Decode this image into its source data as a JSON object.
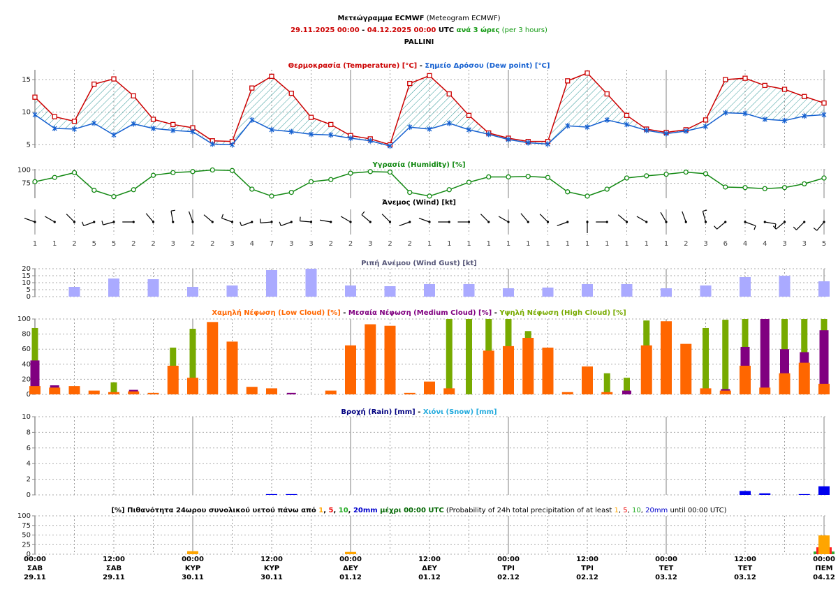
{
  "header": {
    "lines": [
      [
        {
          "text": "Μετεώγραμμα ECMWF",
          "color": "#000000",
          "bold": true
        },
        {
          "text": " (Meteogram ECMWF)",
          "color": "#000000",
          "bold": false
        }
      ],
      [
        {
          "text": "29.11.2025 00:00",
          "color": "#cc0000",
          "bold": true
        },
        {
          "text": " - ",
          "color": "#000000",
          "bold": true
        },
        {
          "text": "04.12.2025 00:00",
          "color": "#cc0000",
          "bold": true
        },
        {
          "text": " UTC ",
          "color": "#000000",
          "bold": true
        },
        {
          "text": "ανά 3 ώρες",
          "color": "#119911",
          "bold": true
        },
        {
          "text": " (per 3 hours)",
          "color": "#119911",
          "bold": false
        }
      ],
      [
        {
          "text": "PALLINI",
          "color": "#000000",
          "bold": true
        }
      ]
    ]
  },
  "time_axis": [
    {
      "time": "00:00",
      "day": "ΣΑΒ",
      "date": "29.11"
    },
    {
      "time": "12:00",
      "day": "ΣΑΒ",
      "date": "29.11"
    },
    {
      "time": "00:00",
      "day": "ΚΥΡ",
      "date": "30.11"
    },
    {
      "time": "12:00",
      "day": "ΚΥΡ",
      "date": "30.11"
    },
    {
      "time": "00:00",
      "day": "ΔΕΥ",
      "date": "01.12"
    },
    {
      "time": "12:00",
      "day": "ΔΕΥ",
      "date": "01.12"
    },
    {
      "time": "00:00",
      "day": "ΤΡΙ",
      "date": "02.12"
    },
    {
      "time": "12:00",
      "day": "ΤΡΙ",
      "date": "02.12"
    },
    {
      "time": "00:00",
      "day": "ΤΕΤ",
      "date": "03.12"
    },
    {
      "time": "12:00",
      "day": "ΤΕΤ",
      "date": "03.12"
    },
    {
      "time": "00:00",
      "day": "ΠΕΜ",
      "date": "04.12"
    }
  ],
  "chart_data": [
    {
      "type": "line",
      "fill_between": true,
      "hatch_color": "#339999",
      "title": [
        {
          "text": "Θερμοκρασία (Temperature) [°C]",
          "color": "#cc0000",
          "bold": true
        },
        {
          "text": " - ",
          "color": "#000000",
          "bold": true
        },
        {
          "text": "Σημείο Δρόσου (Dew point) [°C]",
          "color": "#1560d0",
          "bold": true
        }
      ],
      "ylim": [
        4.5,
        16.5
      ],
      "yticks": [
        5,
        10,
        15
      ],
      "grid": true,
      "series": [
        {
          "color": "#cc0000",
          "marker": "square",
          "values": [
            12.3,
            9.3,
            8.6,
            14.3,
            15.1,
            12.5,
            8.9,
            8.1,
            7.6,
            5.6,
            5.5,
            13.7,
            15.5,
            12.9,
            9.2,
            8.1,
            6.4,
            5.9,
            5.0,
            14.4,
            15.6,
            12.8,
            9.5,
            6.8,
            6.0,
            5.5,
            5.5,
            14.8,
            16.0,
            12.8,
            9.5,
            7.4,
            6.9,
            7.3,
            8.8,
            15.0,
            15.2,
            14.1,
            13.5,
            12.4,
            11.4
          ]
        },
        {
          "color": "#1560d0",
          "marker": "asterisk",
          "values": [
            9.6,
            7.5,
            7.4,
            8.3,
            6.5,
            8.2,
            7.5,
            7.2,
            7.0,
            5.1,
            5.0,
            8.8,
            7.3,
            7.0,
            6.6,
            6.5,
            6.0,
            5.6,
            4.8,
            7.7,
            7.4,
            8.3,
            7.3,
            6.6,
            5.8,
            5.3,
            5.1,
            7.9,
            7.7,
            8.8,
            8.1,
            7.2,
            6.7,
            7.1,
            7.8,
            9.9,
            9.8,
            8.9,
            8.7,
            9.4,
            9.6
          ]
        }
      ]
    },
    {
      "type": "line",
      "title": [
        {
          "text": "Υγρασία (Humidity) [%]",
          "color": "#118811",
          "bold": true
        }
      ],
      "ylim": [
        47,
        102
      ],
      "yticks": [
        75,
        100
      ],
      "grid": true,
      "series": [
        {
          "color": "#118811",
          "marker": "circle",
          "values": [
            78,
            86,
            95,
            62,
            50,
            63,
            90,
            95,
            97,
            100,
            99,
            64,
            51,
            58,
            78,
            82,
            94,
            97,
            96,
            58,
            51,
            63,
            77,
            87,
            87,
            88,
            86,
            59,
            51,
            64,
            85,
            89,
            92,
            96,
            93,
            68,
            67,
            65,
            67,
            74,
            85
          ]
        }
      ]
    },
    {
      "type": "wind",
      "color": "#000000",
      "title": [
        {
          "text": "Άνεμος (Wind) [kt]",
          "color": "#000000",
          "bold": true
        }
      ],
      "direction": [
        290,
        300,
        315,
        250,
        255,
        270,
        320,
        350,
        340,
        310,
        290,
        250,
        265,
        250,
        275,
        280,
        300,
        310,
        315,
        250,
        290,
        270,
        270,
        315,
        300,
        320,
        315,
        250,
        180,
        270,
        310,
        300,
        330,
        340,
        345,
        230,
        110,
        100,
        230,
        225,
        220
      ],
      "speed": [
        1,
        1,
        2,
        5,
        5,
        2,
        2,
        3,
        2,
        2,
        3,
        4,
        7,
        3,
        3,
        2,
        2,
        3,
        2,
        2,
        1,
        1,
        1,
        1,
        1,
        1,
        1,
        1,
        1,
        1,
        1,
        1,
        1,
        2,
        3,
        6,
        4,
        4,
        3,
        3,
        5
      ]
    },
    {
      "type": "bar",
      "title": [
        {
          "text": "Ριπή Ανέμου (Wind Gust) [kt]",
          "color": "#555577",
          "bold": true
        }
      ],
      "ylim": [
        0,
        20
      ],
      "yticks": [
        0,
        5,
        10,
        15,
        20
      ],
      "grid": true,
      "series": [
        {
          "color": "#aaaaff",
          "values": [
            null,
            null,
            7,
            null,
            13,
            null,
            12.5,
            null,
            7,
            null,
            8,
            null,
            19,
            null,
            20,
            null,
            8,
            null,
            7.5,
            null,
            9,
            null,
            9,
            null,
            6,
            null,
            6.5,
            null,
            9,
            null,
            9,
            null,
            6,
            null,
            8,
            null,
            14,
            null,
            15,
            null,
            11
          ]
        }
      ]
    },
    {
      "type": "bar",
      "title": [
        {
          "text": "Χαμηλή Νέφωση (Low Cloud) [%]",
          "color": "#ff6600",
          "bold": true
        },
        {
          "text": " - ",
          "color": "#000000",
          "bold": true
        },
        {
          "text": "Μεσαία Νέφωση (Medium Cloud) [%]",
          "color": "#800080",
          "bold": true
        },
        {
          "text": " - ",
          "color": "#000000",
          "bold": true
        },
        {
          "text": "Υψηλή Νέφωση (High Cloud) [%]",
          "color": "#77aa00",
          "bold": true
        }
      ],
      "ylim": [
        0,
        100
      ],
      "yticks": [
        0,
        20,
        40,
        60,
        80,
        100
      ],
      "grid": true,
      "series": [
        {
          "color": "#ff6600",
          "values": [
            11,
            9,
            11,
            5,
            3,
            4,
            2,
            38,
            22,
            96,
            70,
            10,
            8,
            0,
            0,
            5,
            65,
            93,
            91,
            2,
            17,
            8,
            0,
            58,
            64,
            75,
            62,
            3,
            37,
            3,
            0,
            65,
            97,
            67,
            8,
            5,
            38,
            9,
            28,
            42,
            14
          ]
        },
        {
          "color": "#800080",
          "values": [
            45,
            12,
            0,
            0,
            0,
            6,
            0,
            0,
            0,
            0,
            0,
            0,
            0,
            2,
            0,
            0,
            0,
            0,
            0,
            0,
            0,
            0,
            0,
            0,
            0,
            0,
            0,
            0,
            0,
            0,
            5,
            0,
            0,
            0,
            0,
            7,
            63,
            100,
            60,
            56,
            85
          ]
        },
        {
          "color": "#77aa00",
          "values": [
            88,
            0,
            0,
            0,
            16,
            0,
            0,
            62,
            87,
            0,
            0,
            0,
            0,
            0,
            0,
            0,
            0,
            0,
            0,
            0,
            0,
            100,
            100,
            100,
            100,
            84,
            0,
            0,
            0,
            28,
            22,
            98,
            0,
            0,
            88,
            99,
            100,
            0,
            100,
            100,
            100
          ]
        }
      ]
    },
    {
      "type": "bar",
      "title": [
        {
          "text": "Βροχή (Rain) [mm]",
          "color": "#000080",
          "bold": true
        },
        {
          "text": " - ",
          "color": "#000000",
          "bold": true
        },
        {
          "text": "Χιόνι (Snow) [mm]",
          "color": "#22aadd",
          "bold": true
        }
      ],
      "ylim": [
        0,
        10
      ],
      "yticks": [
        0,
        2,
        4,
        6,
        8,
        10
      ],
      "grid": true,
      "series": [
        {
          "color": "#0000ee",
          "values": [
            0,
            0,
            0,
            0,
            0,
            0,
            0,
            0,
            0,
            0,
            0,
            0,
            0.1,
            0.1,
            0,
            0,
            0,
            0,
            0,
            0,
            0,
            0,
            0,
            0,
            0,
            0,
            0,
            0,
            0,
            0,
            0,
            0,
            0,
            0,
            0,
            0,
            0.5,
            0.2,
            0,
            0.1,
            1.1
          ]
        },
        {
          "color": "#22aadd",
          "values": [
            0,
            0,
            0,
            0,
            0,
            0,
            0,
            0,
            0,
            0,
            0,
            0,
            0,
            0,
            0,
            0,
            0,
            0,
            0,
            0,
            0,
            0,
            0,
            0,
            0,
            0,
            0,
            0,
            0,
            0,
            0,
            0,
            0,
            0,
            0,
            0,
            0,
            0,
            0,
            0,
            0
          ]
        }
      ]
    },
    {
      "type": "bar",
      "title": [
        {
          "text": "[%] Πιθανότητα 24ωρου συνολικού υετού πάνω από ",
          "color": "#000000",
          "bold": true
        },
        {
          "text": "1",
          "color": "#ffa500",
          "bold": true
        },
        {
          "text": ", ",
          "color": "#000000",
          "bold": true
        },
        {
          "text": "5",
          "color": "#ee0000",
          "bold": true
        },
        {
          "text": ", ",
          "color": "#000000",
          "bold": true
        },
        {
          "text": "10",
          "color": "#22aa22",
          "bold": true
        },
        {
          "text": ", ",
          "color": "#000000",
          "bold": true
        },
        {
          "text": "20mm",
          "color": "#0000cc",
          "bold": true
        },
        {
          "text": " μέχρι 00:00 UTC",
          "color": "#006600",
          "bold": true
        },
        {
          "text": " (Probability of 24h total precipitation of at least ",
          "color": "#000000",
          "bold": false
        },
        {
          "text": "1",
          "color": "#ffa500",
          "bold": false
        },
        {
          "text": ", ",
          "color": "#000000",
          "bold": false
        },
        {
          "text": "5",
          "color": "#ee0000",
          "bold": false
        },
        {
          "text": ", ",
          "color": "#000000",
          "bold": false
        },
        {
          "text": "10",
          "color": "#22aa22",
          "bold": false
        },
        {
          "text": ", ",
          "color": "#000000",
          "bold": false
        },
        {
          "text": "20mm",
          "color": "#0000cc",
          "bold": false
        },
        {
          "text": " until 00:00 UTC)",
          "color": "#000000",
          "bold": false
        }
      ],
      "ylim": [
        0,
        100
      ],
      "yticks": [
        0,
        25,
        50,
        75,
        100
      ],
      "grid": true,
      "series": [
        {
          "color": "#ffa500",
          "values": [
            null,
            null,
            null,
            null,
            null,
            null,
            null,
            null,
            8,
            null,
            null,
            null,
            null,
            null,
            null,
            null,
            6,
            null,
            null,
            null,
            null,
            null,
            null,
            null,
            0,
            null,
            null,
            null,
            null,
            null,
            null,
            null,
            0,
            null,
            null,
            null,
            null,
            null,
            null,
            null,
            49
          ]
        },
        {
          "color": "#ff2222",
          "values": [
            null,
            null,
            null,
            null,
            null,
            null,
            null,
            null,
            0,
            null,
            null,
            null,
            null,
            null,
            null,
            null,
            0,
            null,
            null,
            null,
            null,
            null,
            null,
            null,
            0,
            null,
            null,
            null,
            null,
            null,
            null,
            null,
            0,
            null,
            null,
            null,
            null,
            null,
            null,
            null,
            18
          ]
        },
        {
          "color": "#33aa33",
          "values": [
            null,
            null,
            null,
            null,
            null,
            null,
            null,
            null,
            0,
            null,
            null,
            null,
            null,
            null,
            null,
            null,
            0,
            null,
            null,
            null,
            null,
            null,
            null,
            null,
            0,
            null,
            null,
            null,
            null,
            null,
            null,
            null,
            0,
            null,
            null,
            null,
            null,
            null,
            null,
            null,
            7
          ]
        },
        {
          "color": "#0000ff",
          "values": [
            null,
            null,
            null,
            null,
            null,
            null,
            null,
            null,
            0,
            null,
            null,
            null,
            null,
            null,
            null,
            null,
            0,
            null,
            null,
            null,
            null,
            null,
            null,
            null,
            0,
            null,
            null,
            null,
            null,
            null,
            null,
            null,
            0,
            null,
            null,
            null,
            null,
            null,
            null,
            null,
            0
          ]
        }
      ]
    }
  ]
}
